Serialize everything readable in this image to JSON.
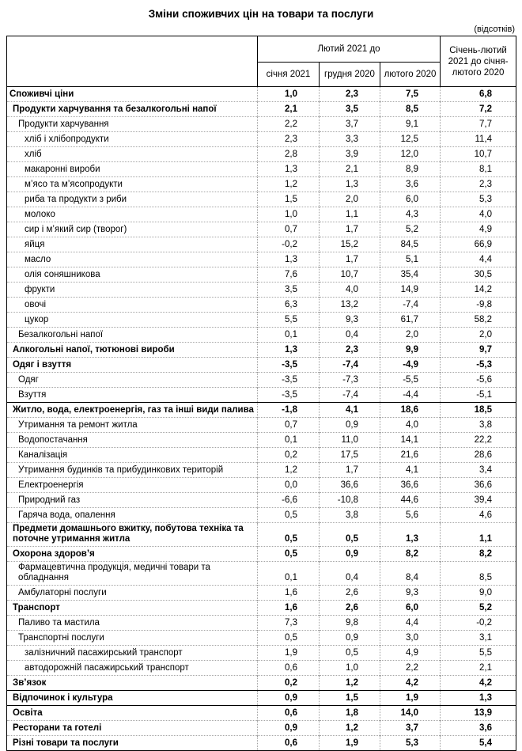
{
  "title": "Зміни споживчих цін на товари та послуги",
  "unit_note": "(відсотків)",
  "header": {
    "group_label": "Лютий 2021 до",
    "sub_columns": [
      "січня 2021",
      "грудня 2020",
      "лютого 2020"
    ],
    "last_column": "Січень-лютий 2021 до січня-лютого 2020"
  },
  "rows": [
    {
      "label": "Споживчі ціни",
      "indent": 0,
      "bold": true,
      "values": [
        "1,0",
        "2,3",
        "7,5",
        "6,8"
      ]
    },
    {
      "label": "Продукти харчування та безалкогольні напої",
      "indent": 1,
      "bold": true,
      "values": [
        "2,1",
        "3,5",
        "8,5",
        "7,2"
      ]
    },
    {
      "label": "Продукти харчування",
      "indent": 2,
      "bold": false,
      "values": [
        "2,2",
        "3,7",
        "9,1",
        "7,7"
      ]
    },
    {
      "label": "хліб і хлібопродукти",
      "indent": 3,
      "bold": false,
      "values": [
        "2,3",
        "3,3",
        "12,5",
        "11,4"
      ]
    },
    {
      "label": "хліб",
      "indent": 3,
      "bold": false,
      "values": [
        "2,8",
        "3,9",
        "12,0",
        "10,7"
      ]
    },
    {
      "label": "макаронні вироби",
      "indent": 3,
      "bold": false,
      "values": [
        "1,3",
        "2,1",
        "8,9",
        "8,1"
      ]
    },
    {
      "label": "м’ясо та м’ясопродукти",
      "indent": 3,
      "bold": false,
      "values": [
        "1,2",
        "1,3",
        "3,6",
        "2,3"
      ]
    },
    {
      "label": "риба та продукти з риби",
      "indent": 3,
      "bold": false,
      "values": [
        "1,5",
        "2,0",
        "6,0",
        "5,3"
      ]
    },
    {
      "label": "молоко",
      "indent": 3,
      "bold": false,
      "values": [
        "1,0",
        "1,1",
        "4,3",
        "4,0"
      ]
    },
    {
      "label": "сир і м’який сир (творог)",
      "indent": 3,
      "bold": false,
      "values": [
        "0,7",
        "1,7",
        "5,2",
        "4,9"
      ]
    },
    {
      "label": "яйця",
      "indent": 3,
      "bold": false,
      "values": [
        "-0,2",
        "15,2",
        "84,5",
        "66,9"
      ]
    },
    {
      "label": "масло",
      "indent": 3,
      "bold": false,
      "values": [
        "1,3",
        "1,7",
        "5,1",
        "4,4"
      ]
    },
    {
      "label": "олія соняшникова",
      "indent": 3,
      "bold": false,
      "values": [
        "7,6",
        "10,7",
        "35,4",
        "30,5"
      ]
    },
    {
      "label": "фрукти",
      "indent": 3,
      "bold": false,
      "values": [
        "3,5",
        "4,0",
        "14,9",
        "14,2"
      ]
    },
    {
      "label": "овочі",
      "indent": 3,
      "bold": false,
      "values": [
        "6,3",
        "13,2",
        "-7,4",
        "-9,8"
      ]
    },
    {
      "label": "цукор",
      "indent": 3,
      "bold": false,
      "values": [
        "5,5",
        "9,3",
        "61,7",
        "58,2"
      ]
    },
    {
      "label": "Безалкогольні напої",
      "indent": 2,
      "bold": false,
      "values": [
        "0,1",
        "0,4",
        "2,0",
        "2,0"
      ]
    },
    {
      "label": "Алкогольні напої, тютюнові вироби",
      "indent": 1,
      "bold": true,
      "values": [
        "1,3",
        "2,3",
        "9,9",
        "9,7"
      ]
    },
    {
      "label": "Одяг і взуття",
      "indent": 1,
      "bold": true,
      "values": [
        "-3,5",
        "-7,4",
        "-4,9",
        "-5,3"
      ]
    },
    {
      "label": "Одяг",
      "indent": 2,
      "bold": false,
      "values": [
        "-3,5",
        "-7,3",
        "-5,5",
        "-5,6"
      ]
    },
    {
      "label": "Взуття",
      "indent": 2,
      "bold": false,
      "values": [
        "-3,5",
        "-7,4",
        "-4,4",
        "-5,1"
      ]
    },
    {
      "label": "Житло, вода, електроенергія, газ та інші види палива",
      "indent": 1,
      "bold": true,
      "solid_top": true,
      "values": [
        "-1,8",
        "4,1",
        "18,6",
        "18,5"
      ]
    },
    {
      "label": "Утримання та ремонт житла",
      "indent": 2,
      "bold": false,
      "values": [
        "0,7",
        "0,9",
        "4,0",
        "3,8"
      ]
    },
    {
      "label": "Водопостачання",
      "indent": 2,
      "bold": false,
      "values": [
        "0,1",
        "11,0",
        "14,1",
        "22,2"
      ]
    },
    {
      "label": "Каналізація",
      "indent": 2,
      "bold": false,
      "values": [
        "0,2",
        "17,5",
        "21,6",
        "28,6"
      ]
    },
    {
      "label": "Утримання будинків та прибудинкових територій",
      "indent": 2,
      "bold": false,
      "values": [
        "1,2",
        "1,7",
        "4,1",
        "3,4"
      ]
    },
    {
      "label": "Електроенергія",
      "indent": 2,
      "bold": false,
      "values": [
        "0,0",
        "36,6",
        "36,6",
        "36,6"
      ]
    },
    {
      "label": "Природний газ",
      "indent": 2,
      "bold": false,
      "values": [
        "-6,6",
        "-10,8",
        "44,6",
        "39,4"
      ]
    },
    {
      "label": "Гаряча вода, опалення",
      "indent": 2,
      "bold": false,
      "values": [
        "0,5",
        "3,8",
        "5,6",
        "4,6"
      ]
    },
    {
      "label": "Предмети домашнього вжитку, побутова техніка та поточне утримання житла",
      "indent": 1,
      "bold": true,
      "values": [
        "0,5",
        "0,5",
        "1,3",
        "1,1"
      ]
    },
    {
      "label": "Охорона здоров’я",
      "indent": 1,
      "bold": true,
      "values": [
        "0,5",
        "0,9",
        "8,2",
        "8,2"
      ]
    },
    {
      "label": "Фармацевтична продукція, медичні товари та обладнання",
      "indent": 2,
      "bold": false,
      "values": [
        "0,1",
        "0,4",
        "8,4",
        "8,5"
      ]
    },
    {
      "label": "Амбулаторні послуги",
      "indent": 2,
      "bold": false,
      "values": [
        "1,6",
        "2,6",
        "9,3",
        "9,0"
      ]
    },
    {
      "label": "Транспорт",
      "indent": 1,
      "bold": true,
      "values": [
        "1,6",
        "2,6",
        "6,0",
        "5,2"
      ]
    },
    {
      "label": "Паливо та мастила",
      "indent": 2,
      "bold": false,
      "values": [
        "7,3",
        "9,8",
        "4,4",
        "-0,2"
      ]
    },
    {
      "label": "Транспортні послуги",
      "indent": 2,
      "bold": false,
      "values": [
        "0,5",
        "0,9",
        "3,0",
        "3,1"
      ]
    },
    {
      "label": "залізничний пасажирський транспорт",
      "indent": 3,
      "bold": false,
      "values": [
        "1,9",
        "0,5",
        "4,9",
        "5,5"
      ]
    },
    {
      "label": "автодорожній пасажирський транспорт",
      "indent": 3,
      "bold": false,
      "values": [
        "0,6",
        "1,0",
        "2,2",
        "2,1"
      ]
    },
    {
      "label": "Зв’язок",
      "indent": 1,
      "bold": true,
      "values": [
        "0,2",
        "1,2",
        "4,2",
        "4,2"
      ]
    },
    {
      "label": "Відпочинок і культура",
      "indent": 1,
      "bold": true,
      "solid_top": true,
      "values": [
        "0,9",
        "1,5",
        "1,9",
        "1,3"
      ]
    },
    {
      "label": "Освіта",
      "indent": 1,
      "bold": true,
      "solid_top": true,
      "values": [
        "0,6",
        "1,8",
        "14,0",
        "13,9"
      ]
    },
    {
      "label": "Ресторани та готелі",
      "indent": 1,
      "bold": true,
      "values": [
        "0,9",
        "1,2",
        "3,7",
        "3,6"
      ]
    },
    {
      "label": "Різні товари та послуги",
      "indent": 1,
      "bold": true,
      "values": [
        "0,6",
        "1,9",
        "5,3",
        "5,4"
      ]
    }
  ]
}
